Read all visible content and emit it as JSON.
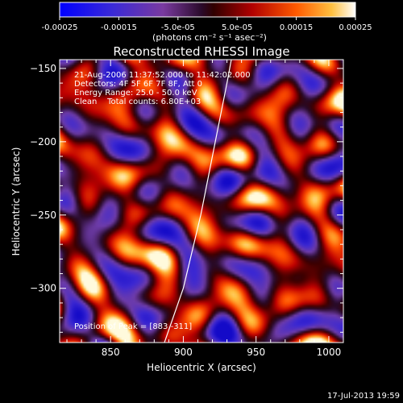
{
  "colorbar": {
    "ticks": [
      "-0.00025",
      "-0.00015",
      "-5.0e-05",
      "5.0e-05",
      "0.00015",
      "0.00025"
    ],
    "unit_label": "(photons cm⁻² s⁻¹ asec⁻²)",
    "range": [
      -0.00025,
      0.00025
    ]
  },
  "chart_data": {
    "type": "heatmap",
    "title": "Reconstructed RHESSI Image",
    "xlabel": "Heliocentric X (arcsec)",
    "ylabel": "Heliocentric Y (arcsec)",
    "xlim": [
      815,
      1010
    ],
    "ylim": [
      -337,
      -144
    ],
    "x_ticks": [
      850,
      900,
      950,
      1000
    ],
    "y_ticks": [
      -150,
      -200,
      -250,
      -300
    ],
    "x_tick_labels": [
      "850",
      "900",
      "950",
      "1000"
    ],
    "y_tick_labels": [
      "−150",
      "−200",
      "−250",
      "−300"
    ],
    "annotations": [
      "21-Aug-2006 11:37:52.000 to 11:42:02.000",
      "Detectors: 4F 5F 6F 7F 8F, Att 0",
      "Energy Range: 25.0 - 50.0 keV",
      "Clean    Total counts: 6.80E+03"
    ],
    "peak_label": "Position of Peak = [883,-311]",
    "peak": [
      883,
      -311
    ],
    "limb_curve": [
      [
        887,
        -337
      ],
      [
        900,
        -300
      ],
      [
        912,
        -250
      ],
      [
        922,
        -200
      ],
      [
        930,
        -160
      ],
      [
        933,
        -144
      ]
    ]
  },
  "footer": {
    "timestamp": "17-Jul-2013 19:59"
  }
}
